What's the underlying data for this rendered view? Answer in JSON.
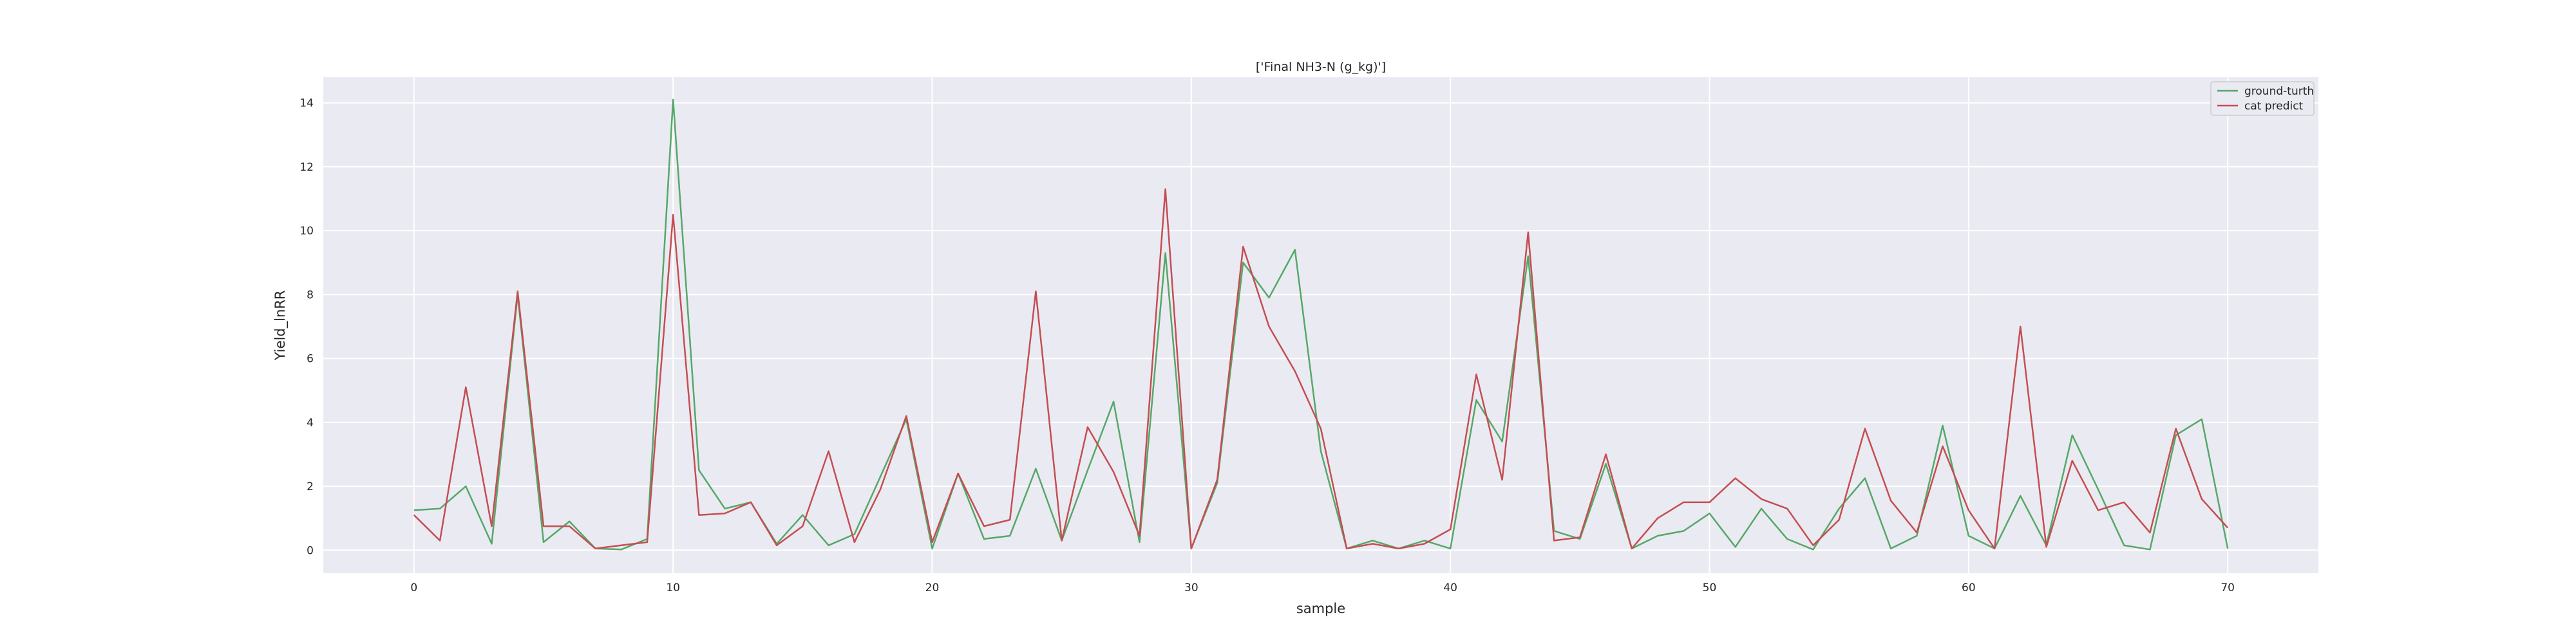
{
  "chart_data": {
    "type": "line",
    "title": "['Final NH3-N (g_kg)']",
    "xlabel": "sample",
    "ylabel": "Yield_lnRR",
    "xlim": [
      -3.5,
      73.5
    ],
    "ylim": [
      -0.72,
      14.8
    ],
    "xticks": [
      0,
      10,
      20,
      30,
      40,
      50,
      60,
      70
    ],
    "yticks": [
      0,
      2,
      4,
      6,
      8,
      10,
      12,
      14
    ],
    "grid": true,
    "legend_position": "upper-right",
    "background_color": "#eaeaf2",
    "x": [
      0,
      1,
      2,
      3,
      4,
      5,
      6,
      7,
      8,
      9,
      10,
      11,
      12,
      13,
      14,
      15,
      16,
      17,
      18,
      19,
      20,
      21,
      22,
      23,
      24,
      25,
      26,
      27,
      28,
      29,
      30,
      31,
      32,
      33,
      34,
      35,
      36,
      37,
      38,
      39,
      40,
      41,
      42,
      43,
      44,
      45,
      46,
      47,
      48,
      49,
      50,
      51,
      52,
      53,
      54,
      55,
      56,
      57,
      58,
      59,
      60,
      61,
      62,
      63,
      64,
      65,
      66,
      67,
      68,
      69,
      70
    ],
    "series": [
      {
        "name": "ground-turth",
        "color": "#55a868",
        "values": [
          1.25,
          1.3,
          2.0,
          0.2,
          8.0,
          0.25,
          0.9,
          0.05,
          0.02,
          0.35,
          14.1,
          2.5,
          1.3,
          1.5,
          0.2,
          1.1,
          0.15,
          0.5,
          2.3,
          4.1,
          0.05,
          2.4,
          0.35,
          0.45,
          2.55,
          0.3,
          2.5,
          4.65,
          0.25,
          9.3,
          0.05,
          2.1,
          9.0,
          7.9,
          9.4,
          3.1,
          0.05,
          0.3,
          0.05,
          0.3,
          0.05,
          4.7,
          3.4,
          9.2,
          0.6,
          0.35,
          2.7,
          0.05,
          0.45,
          0.6,
          1.15,
          0.1,
          1.3,
          0.35,
          0.02,
          1.3,
          2.25,
          0.05,
          0.45,
          3.9,
          0.45,
          0.05,
          1.7,
          0.15,
          3.6,
          1.9,
          0.15,
          0.02,
          3.6,
          4.1,
          0.05
        ]
      },
      {
        "name": "cat predict",
        "color": "#c44e52",
        "values": [
          1.1,
          0.3,
          5.1,
          0.75,
          8.1,
          0.75,
          0.75,
          0.05,
          0.15,
          0.25,
          10.5,
          1.1,
          1.15,
          1.5,
          0.15,
          0.75,
          3.1,
          0.25,
          1.9,
          4.2,
          0.25,
          2.4,
          0.75,
          0.95,
          8.1,
          0.3,
          3.85,
          2.45,
          0.45,
          11.3,
          0.05,
          2.2,
          9.5,
          7.0,
          5.6,
          3.8,
          0.05,
          0.2,
          0.05,
          0.2,
          0.65,
          5.5,
          2.2,
          9.95,
          0.3,
          0.4,
          3.0,
          0.05,
          1.0,
          1.5,
          1.5,
          2.25,
          1.6,
          1.3,
          0.15,
          0.95,
          3.8,
          1.55,
          0.55,
          3.25,
          1.25,
          0.05,
          7.0,
          0.1,
          2.8,
          1.25,
          1.5,
          0.55,
          3.8,
          1.6,
          0.7
        ]
      }
    ]
  }
}
